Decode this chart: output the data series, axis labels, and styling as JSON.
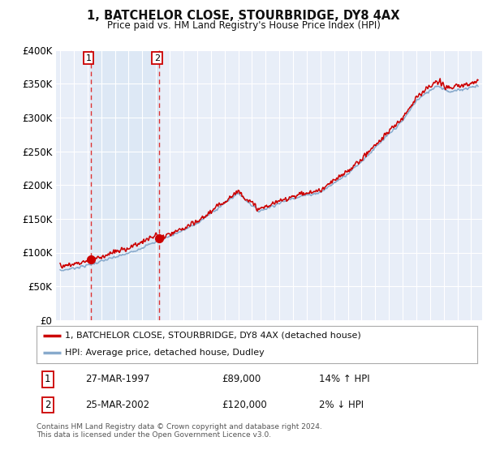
{
  "title": "1, BATCHELOR CLOSE, STOURBRIDGE, DY8 4AX",
  "subtitle": "Price paid vs. HM Land Registry's House Price Index (HPI)",
  "ylim": [
    0,
    400000
  ],
  "yticks": [
    0,
    50000,
    100000,
    150000,
    200000,
    250000,
    300000,
    350000,
    400000
  ],
  "ytick_labels": [
    "£0",
    "£50K",
    "£100K",
    "£150K",
    "£200K",
    "£250K",
    "£300K",
    "£350K",
    "£400K"
  ],
  "background_color": "#ffffff",
  "plot_bg_color": "#e8eef8",
  "grid_color": "#ffffff",
  "transaction1_x": 1997.23,
  "transaction2_x": 2002.23,
  "transaction1_price": 89000,
  "transaction2_price": 120000,
  "legend_line1": "1, BATCHELOR CLOSE, STOURBRIDGE, DY8 4AX (detached house)",
  "legend_line2": "HPI: Average price, detached house, Dudley",
  "footer": "Contains HM Land Registry data © Crown copyright and database right 2024.\nThis data is licensed under the Open Government Licence v3.0.",
  "table_row1": [
    "1",
    "27-MAR-1997",
    "£89,000",
    "14% ↑ HPI"
  ],
  "table_row2": [
    "2",
    "25-MAR-2002",
    "£120,000",
    "2% ↓ HPI"
  ],
  "line_color_red": "#cc0000",
  "line_color_blue": "#88aacc",
  "dashed_color": "#dd3333",
  "shade_color": "#dde8f5",
  "marker_color": "#cc0000",
  "xlim_start": 1994.7,
  "xlim_end": 2025.8
}
